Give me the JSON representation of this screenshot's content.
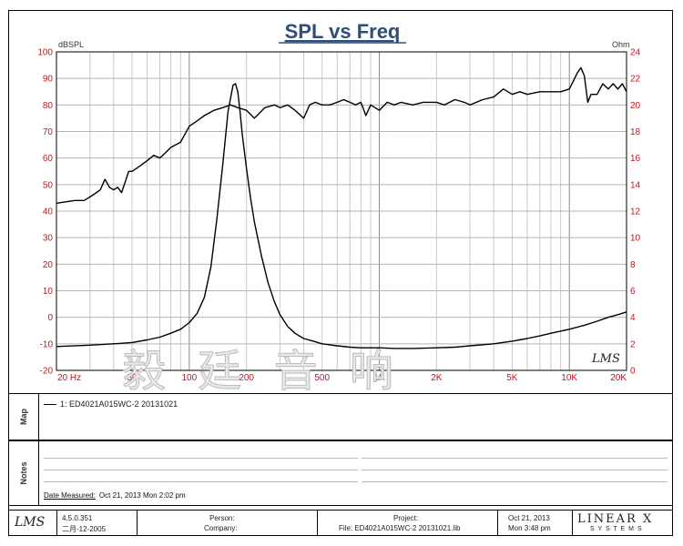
{
  "chart_data": {
    "type": "line",
    "title": "SPL vs Freq",
    "ylabel_left": "dBSPL",
    "ylabel_right": "Ohm",
    "xscale": "log",
    "xlim": [
      20,
      20000
    ],
    "ylim": [
      -20,
      100
    ],
    "ylim_right": [
      0,
      24
    ],
    "x_ticks": [
      20,
      50,
      100,
      200,
      500,
      1000,
      2000,
      5000,
      10000,
      20000
    ],
    "x_tick_labels": [
      "20 Hz",
      "50",
      "100",
      "200",
      "500",
      "1K",
      "2K",
      "5K",
      "10K",
      "20K"
    ],
    "y_ticks": [
      -20,
      -10,
      0,
      10,
      20,
      30,
      40,
      50,
      60,
      70,
      80,
      90,
      100
    ],
    "y_right_ticks": [
      0,
      2,
      4,
      6,
      8,
      10,
      12,
      14,
      16,
      18,
      20,
      22,
      24
    ],
    "grid": true,
    "series": [
      {
        "name": "1: ED4021A015WC-2  20131021",
        "axis": "left",
        "color": "#000000",
        "x": [
          20,
          25,
          28,
          31,
          34,
          36,
          38,
          40,
          42,
          44,
          46,
          48,
          50,
          55,
          60,
          65,
          70,
          75,
          80,
          90,
          100,
          110,
          120,
          135,
          150,
          165,
          180,
          200,
          220,
          250,
          280,
          300,
          330,
          360,
          400,
          430,
          460,
          500,
          550,
          600,
          650,
          700,
          750,
          800,
          850,
          900,
          1000,
          1100,
          1200,
          1300,
          1500,
          1700,
          2000,
          2200,
          2500,
          2800,
          3000,
          3500,
          4000,
          4500,
          5000,
          5500,
          6000,
          7000,
          8000,
          9000,
          10000,
          10500,
          11000,
          11500,
          12000,
          12500,
          13000,
          14000,
          15000,
          16000,
          17000,
          18000,
          19000,
          20000
        ],
        "y": [
          43,
          44,
          44,
          46,
          48,
          52,
          49,
          48,
          49,
          47,
          51,
          55,
          55,
          57,
          59,
          61,
          60,
          62,
          64,
          66,
          72,
          74,
          76,
          78,
          79,
          80,
          79,
          78,
          75,
          79,
          80,
          79,
          80,
          78,
          75,
          80,
          81,
          80,
          80,
          81,
          82,
          81,
          80,
          81,
          76,
          80,
          78,
          81,
          80,
          81,
          80,
          81,
          81,
          80,
          82,
          81,
          80,
          82,
          83,
          86,
          84,
          85,
          84,
          85,
          85,
          85,
          86,
          89,
          92,
          94,
          91,
          81,
          84,
          84,
          88,
          86,
          88,
          86,
          88,
          85
        ]
      },
      {
        "name": "impedance",
        "axis": "right",
        "color": "#000000",
        "x": [
          20,
          30,
          40,
          50,
          60,
          70,
          80,
          90,
          100,
          110,
          120,
          130,
          140,
          150,
          160,
          170,
          175,
          180,
          185,
          190,
          200,
          210,
          220,
          240,
          260,
          280,
          300,
          330,
          360,
          400,
          450,
          500,
          600,
          700,
          800,
          1000,
          1200,
          1500,
          2000,
          2500,
          3000,
          4000,
          5000,
          6000,
          7000,
          8000,
          10000,
          12000,
          14000,
          16000,
          18000,
          20000
        ],
        "y": [
          1.8,
          1.9,
          2.0,
          2.1,
          2.3,
          2.5,
          2.8,
          3.1,
          3.6,
          4.3,
          5.5,
          7.8,
          11.5,
          15.5,
          19.5,
          21.5,
          21.6,
          21.0,
          19.5,
          17.8,
          15.2,
          13.0,
          11.2,
          8.6,
          6.6,
          5.2,
          4.2,
          3.3,
          2.8,
          2.4,
          2.2,
          2.0,
          1.85,
          1.75,
          1.7,
          1.7,
          1.65,
          1.65,
          1.7,
          1.75,
          1.85,
          2.0,
          2.2,
          2.4,
          2.6,
          2.8,
          3.1,
          3.4,
          3.7,
          4.0,
          4.2,
          4.4
        ]
      }
    ]
  },
  "watermark": "毅 廷 音 响",
  "brand_mark": "LMS",
  "legend_entry": "1: ED4021A015WC-2  20131021",
  "map_label": "Map",
  "notes_label": "Notes",
  "date_measured_label": "Date Measured:",
  "date_measured_value": "Oct 21, 2013  Mon  2:02 pm",
  "footer": {
    "version": "4.5.0.351",
    "build_date": "二月-12-2005",
    "person_label": "Person:",
    "company_label": "Company:",
    "project_label": "Project:",
    "file_label": "File: ED4021A015WC-2 20131021.lib",
    "date": "Oct 21, 2013",
    "time": "Mon  3:48 pm",
    "logo_top": "LINEAR X",
    "logo_bottom": "S Y S T E M S"
  }
}
